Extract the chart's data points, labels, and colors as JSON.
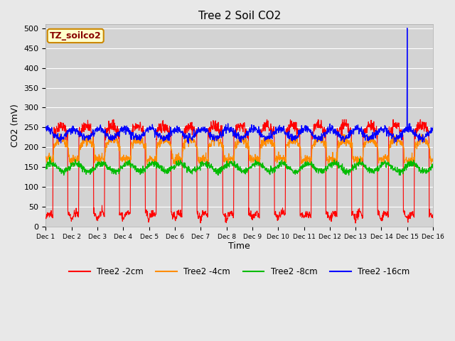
{
  "title": "Tree 2 Soil CO2",
  "ylabel": "CO2 (mV)",
  "xlabel": "Time",
  "annotation": "TZ_soilco2",
  "xlim": [
    0,
    15
  ],
  "ylim": [
    0,
    510
  ],
  "yticks": [
    0,
    50,
    100,
    150,
    200,
    250,
    300,
    350,
    400,
    450,
    500
  ],
  "xtick_labels": [
    "Dec 1",
    "Dec 2",
    "Dec 3",
    "Dec 4",
    "Dec 5",
    "Dec 6",
    "Dec 7",
    "Dec 8",
    "Dec 9",
    "Dec 10",
    "Dec 11",
    "Dec 12",
    "Dec 13",
    "Dec 14",
    "Dec 15",
    "Dec 16"
  ],
  "colors": {
    "2cm": "#ff0000",
    "4cm": "#ff8c00",
    "8cm": "#00bb00",
    "16cm": "#0000ff"
  },
  "legend_labels": [
    "Tree2 -2cm",
    "Tree2 -4cm",
    "Tree2 -8cm",
    "Tree2 -16cm"
  ],
  "fig_bg_color": "#e8e8e8",
  "plot_bg_color": "#d3d3d3",
  "grid_color": "#ffffff",
  "annotation_bg": "#ffffcc",
  "annotation_border": "#cc8800",
  "annotation_text_color": "#880000",
  "spike_x": 14.0,
  "spike_y": 500
}
